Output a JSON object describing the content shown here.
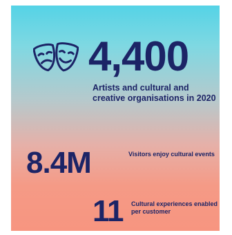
{
  "stats": [
    {
      "value": "4,400",
      "description": "Artists and cultural and creative organisations in 2020",
      "icon": "theater-masks-icon"
    },
    {
      "value": "8.4M",
      "description": "Visitors enjoy cultural events"
    },
    {
      "value": "11",
      "description": "Cultural experiences enabled per customer"
    }
  ],
  "colors": {
    "text": "#1c2466",
    "gradient_top": "#55d3e6",
    "gradient_bottom": "#f79580"
  }
}
